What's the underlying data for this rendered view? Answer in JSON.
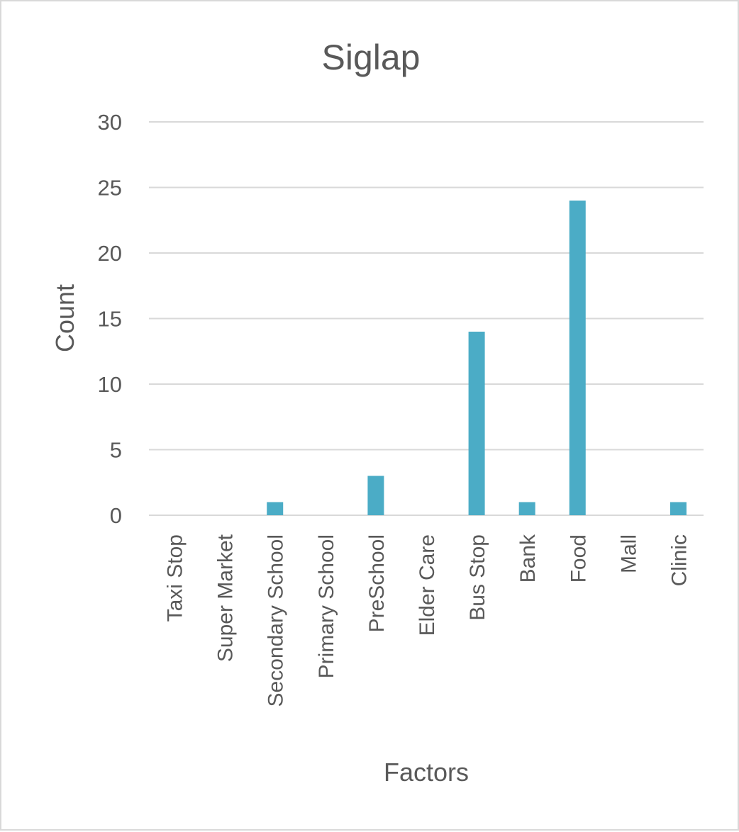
{
  "chart_data": {
    "type": "bar",
    "title": "Siglap",
    "xlabel": "Factors",
    "ylabel": "Count",
    "ylim": [
      0,
      30
    ],
    "yticks": [
      0,
      5,
      10,
      15,
      20,
      25,
      30
    ],
    "grid": true,
    "legend": "none",
    "categories": [
      "Taxi Stop",
      "Super Market",
      "Secondary School",
      "Primary School",
      "PreSchool",
      "Elder Care",
      "Bus Stop",
      "Bank",
      "Food",
      "Mall",
      "Clinic"
    ],
    "values": [
      0,
      0,
      1,
      0,
      3,
      0,
      14,
      1,
      24,
      0,
      1
    ],
    "bar_color": "#4bacc6"
  }
}
